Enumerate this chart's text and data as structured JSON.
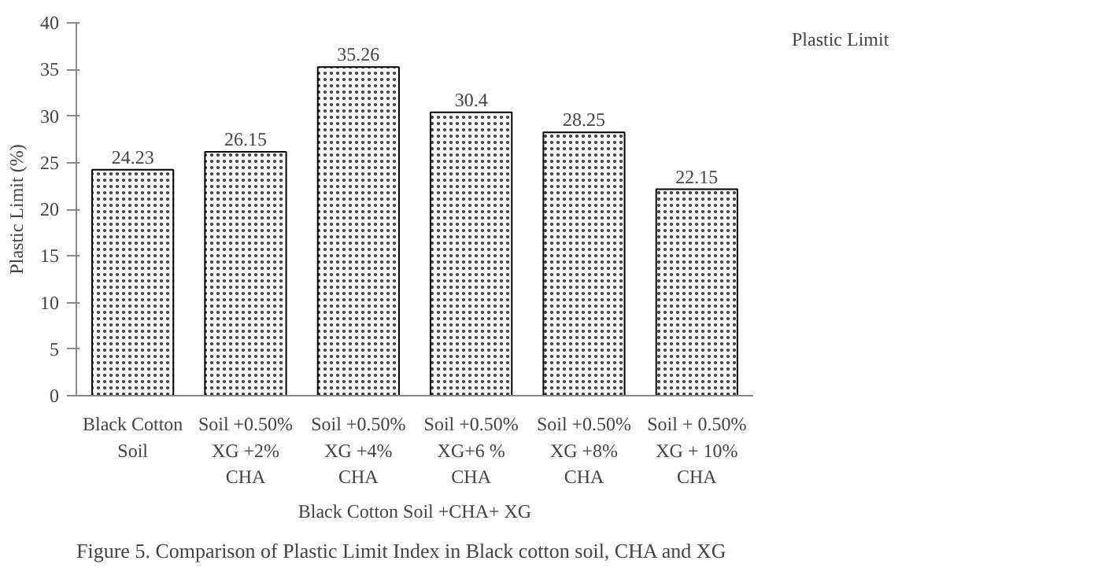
{
  "chart_data": {
    "type": "bar",
    "xlabel": "Black Cotton Soil +CHA+ XG",
    "ylabel": "Plastic Limit (%)",
    "categories": [
      "Black Cotton\nSoil",
      "Soil +0.50%\nXG +2%\nCHA",
      "Soil +0.50%\nXG +4%\nCHA",
      "Soil +0.50%\nXG+6 %\nCHA",
      "Soil +0.50%\nXG +8%\nCHA",
      "Soil + 0.50%\nXG + 10%\nCHA"
    ],
    "series": [
      {
        "name": "Plastic Limit",
        "color": "#ffffff",
        "values": [
          24.23,
          26.15,
          35.26,
          30.4,
          28.25,
          22.15
        ]
      }
    ],
    "ylim": [
      0,
      40
    ],
    "yticks": [
      0,
      5,
      10,
      15,
      20,
      25,
      30,
      35,
      40
    ],
    "grid": false,
    "legend": "top right",
    "data_labels": true,
    "annotations": [
      "Figure 5. Comparison of Plastic Limit Index in Black cotton soil, CHA and XG"
    ]
  }
}
